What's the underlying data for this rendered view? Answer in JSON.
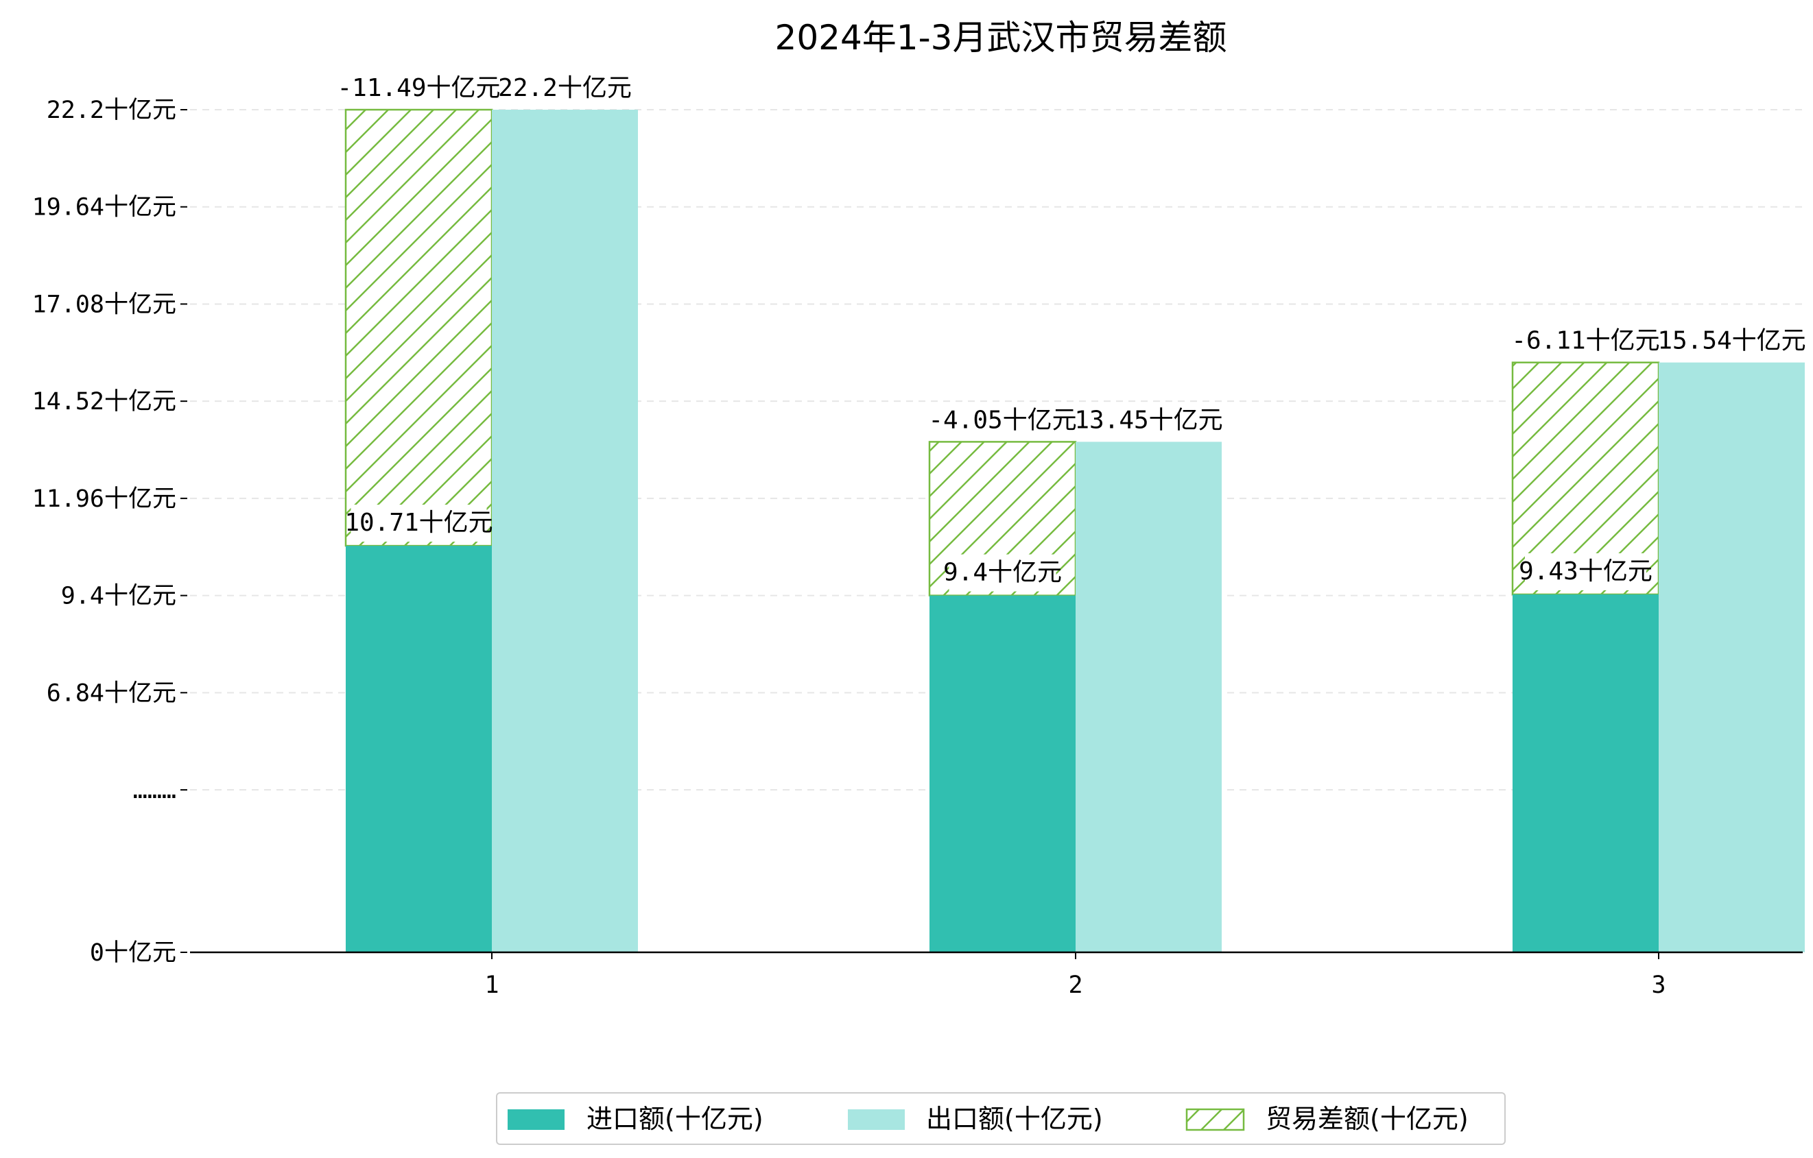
{
  "chart_data": {
    "type": "bar",
    "title": "2024年1-3月武汉市贸易差额",
    "categories": [
      "1",
      "2",
      "3"
    ],
    "y_ticks": [
      "0十亿元",
      "………",
      "6.84十亿元",
      "9.4十亿元",
      "11.96十亿元",
      "14.52十亿元",
      "17.08十亿元",
      "19.64十亿元",
      "22.2十亿元"
    ],
    "y_tick_values": [
      0,
      4.28,
      6.84,
      9.4,
      11.96,
      14.52,
      17.08,
      19.64,
      22.2
    ],
    "ylim": [
      0,
      22.6
    ],
    "grid": "horizontal dashed",
    "legend_position": "bottom-center",
    "series": [
      {
        "name": "进口额(十亿元)",
        "values": [
          10.71,
          9.4,
          9.43
        ],
        "labels": [
          "10.71十亿元",
          "9.4十亿元",
          "9.43十亿元"
        ],
        "color": "#31bfb0"
      },
      {
        "name": "出口额(十亿元)",
        "values": [
          22.2,
          13.45,
          15.54
        ],
        "labels": [
          "22.2十亿元",
          "13.45十亿元",
          "15.54十亿元"
        ],
        "color": "#a8e6e1"
      },
      {
        "name": "贸易差额(十亿元)",
        "values": [
          -11.49,
          -4.05,
          -6.11
        ],
        "labels": [
          "-11.49十亿元",
          "-4.05十亿元",
          "-6.11十亿元"
        ],
        "color": "#76bb40",
        "pattern": "hatch"
      }
    ]
  }
}
